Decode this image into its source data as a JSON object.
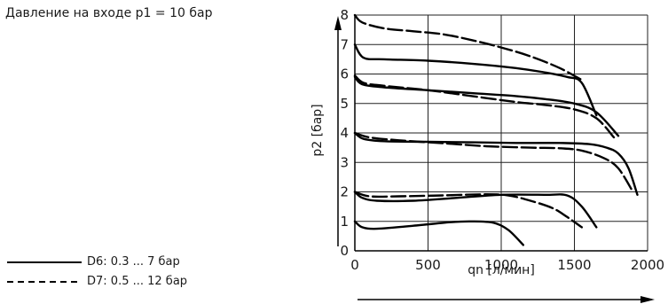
{
  "inlet_note": "Давление на входе p1 = 10 бар",
  "legend": [
    {
      "label": "D6: 0.3 ... 7 бар",
      "style": "solid"
    },
    {
      "label": "D7: 0.5 ... 12 бар",
      "style": "dashed"
    }
  ],
  "chart_data": {
    "type": "line",
    "xlabel": "qn [л/мин]",
    "ylabel": "p2 [бар]",
    "xlim": [
      0,
      2000
    ],
    "ylim": [
      0,
      8
    ],
    "xticks": [
      "0",
      "500",
      "1000",
      "1500",
      "2000"
    ],
    "yticks": [
      "0",
      "1",
      "2",
      "3",
      "4",
      "5",
      "6",
      "7",
      "8"
    ],
    "grid": true,
    "series": [
      {
        "style": "solid",
        "x": [
          0,
          50,
          150,
          400,
          650,
          800,
          950,
          1050,
          1150
        ],
        "y": [
          1.0,
          0.8,
          0.75,
          0.85,
          0.97,
          1.0,
          0.95,
          0.7,
          0.2
        ]
      },
      {
        "style": "solid",
        "x": [
          0,
          50,
          150,
          400,
          700,
          1000,
          1300,
          1450,
          1550,
          1650
        ],
        "y": [
          2.0,
          1.8,
          1.7,
          1.7,
          1.8,
          1.9,
          1.9,
          1.88,
          1.5,
          0.8
        ]
      },
      {
        "style": "solid",
        "x": [
          0,
          60,
          200,
          500,
          800,
          1100,
          1400,
          1600,
          1720,
          1800,
          1870,
          1930
        ],
        "y": [
          4.0,
          3.8,
          3.72,
          3.7,
          3.68,
          3.66,
          3.66,
          3.62,
          3.5,
          3.3,
          2.8,
          1.9
        ]
      },
      {
        "style": "solid",
        "x": [
          0,
          50,
          200,
          500,
          800,
          1100,
          1300,
          1500,
          1650,
          1800
        ],
        "y": [
          5.9,
          5.65,
          5.55,
          5.45,
          5.35,
          5.25,
          5.15,
          5.0,
          4.7,
          3.9
        ]
      },
      {
        "style": "solid",
        "x": [
          0,
          60,
          200,
          500,
          800,
          1100,
          1300,
          1450,
          1550,
          1650
        ],
        "y": [
          7.0,
          6.55,
          6.5,
          6.45,
          6.35,
          6.2,
          6.05,
          5.9,
          5.7,
          4.6
        ]
      },
      {
        "style": "dashed",
        "x": [
          0,
          100,
          300,
          600,
          900,
          1050,
          1200,
          1350,
          1450,
          1550
        ],
        "y": [
          2.0,
          1.85,
          1.85,
          1.88,
          1.92,
          1.88,
          1.7,
          1.45,
          1.15,
          0.8
        ]
      },
      {
        "style": "dashed",
        "x": [
          0,
          100,
          300,
          600,
          900,
          1200,
          1400,
          1550,
          1700,
          1800,
          1900
        ],
        "y": [
          4.0,
          3.85,
          3.75,
          3.65,
          3.55,
          3.5,
          3.48,
          3.4,
          3.15,
          2.8,
          2.0
        ]
      },
      {
        "style": "dashed",
        "x": [
          0,
          60,
          200,
          500,
          800,
          1100,
          1300,
          1500,
          1650,
          1770
        ],
        "y": [
          5.95,
          5.7,
          5.6,
          5.45,
          5.25,
          5.05,
          4.95,
          4.8,
          4.5,
          3.85
        ]
      },
      {
        "style": "dashed",
        "x": [
          0,
          50,
          200,
          400,
          600,
          800,
          1000,
          1200,
          1400,
          1550
        ],
        "y": [
          8.0,
          7.75,
          7.55,
          7.45,
          7.35,
          7.15,
          6.9,
          6.6,
          6.2,
          5.8
        ]
      }
    ]
  }
}
